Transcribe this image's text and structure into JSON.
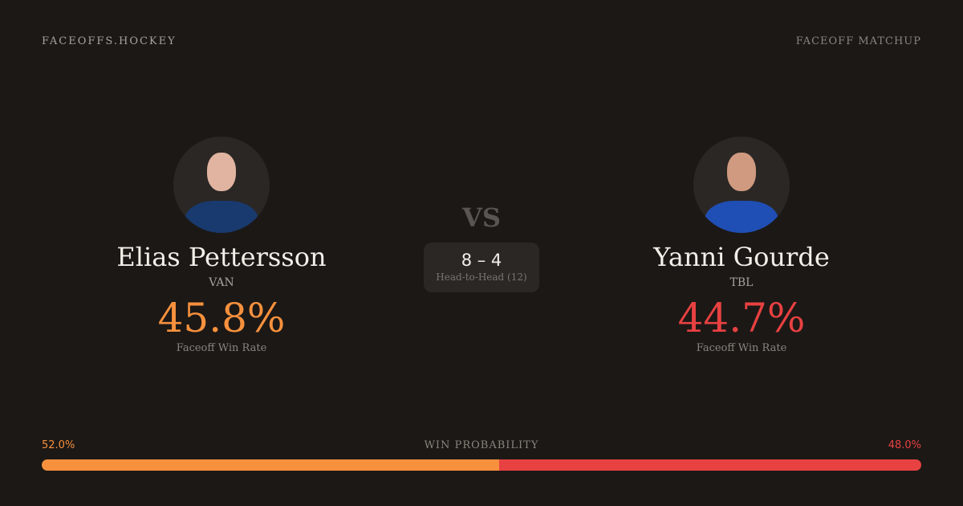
{
  "brand": "FACEOFFS.HOCKEY",
  "tag": "FACEOFF MATCHUP",
  "vs": "VS",
  "h2h": {
    "score": "8 – 4",
    "label": "Head-to-Head (12)"
  },
  "players": [
    {
      "name": "Elias Pettersson",
      "team": "VAN",
      "rate": "45.8%",
      "rate_label": "Faceoff Win Rate",
      "color": "#f7913d"
    },
    {
      "name": "Yanni Gourde",
      "team": "TBL",
      "rate": "44.7%",
      "rate_label": "Faceoff Win Rate",
      "color": "#e84141"
    }
  ],
  "win_probability": {
    "label": "WIN PROBABILITY",
    "left": "52.0%",
    "right": "48.0%",
    "left_value": 52.0,
    "right_value": 48.0
  }
}
